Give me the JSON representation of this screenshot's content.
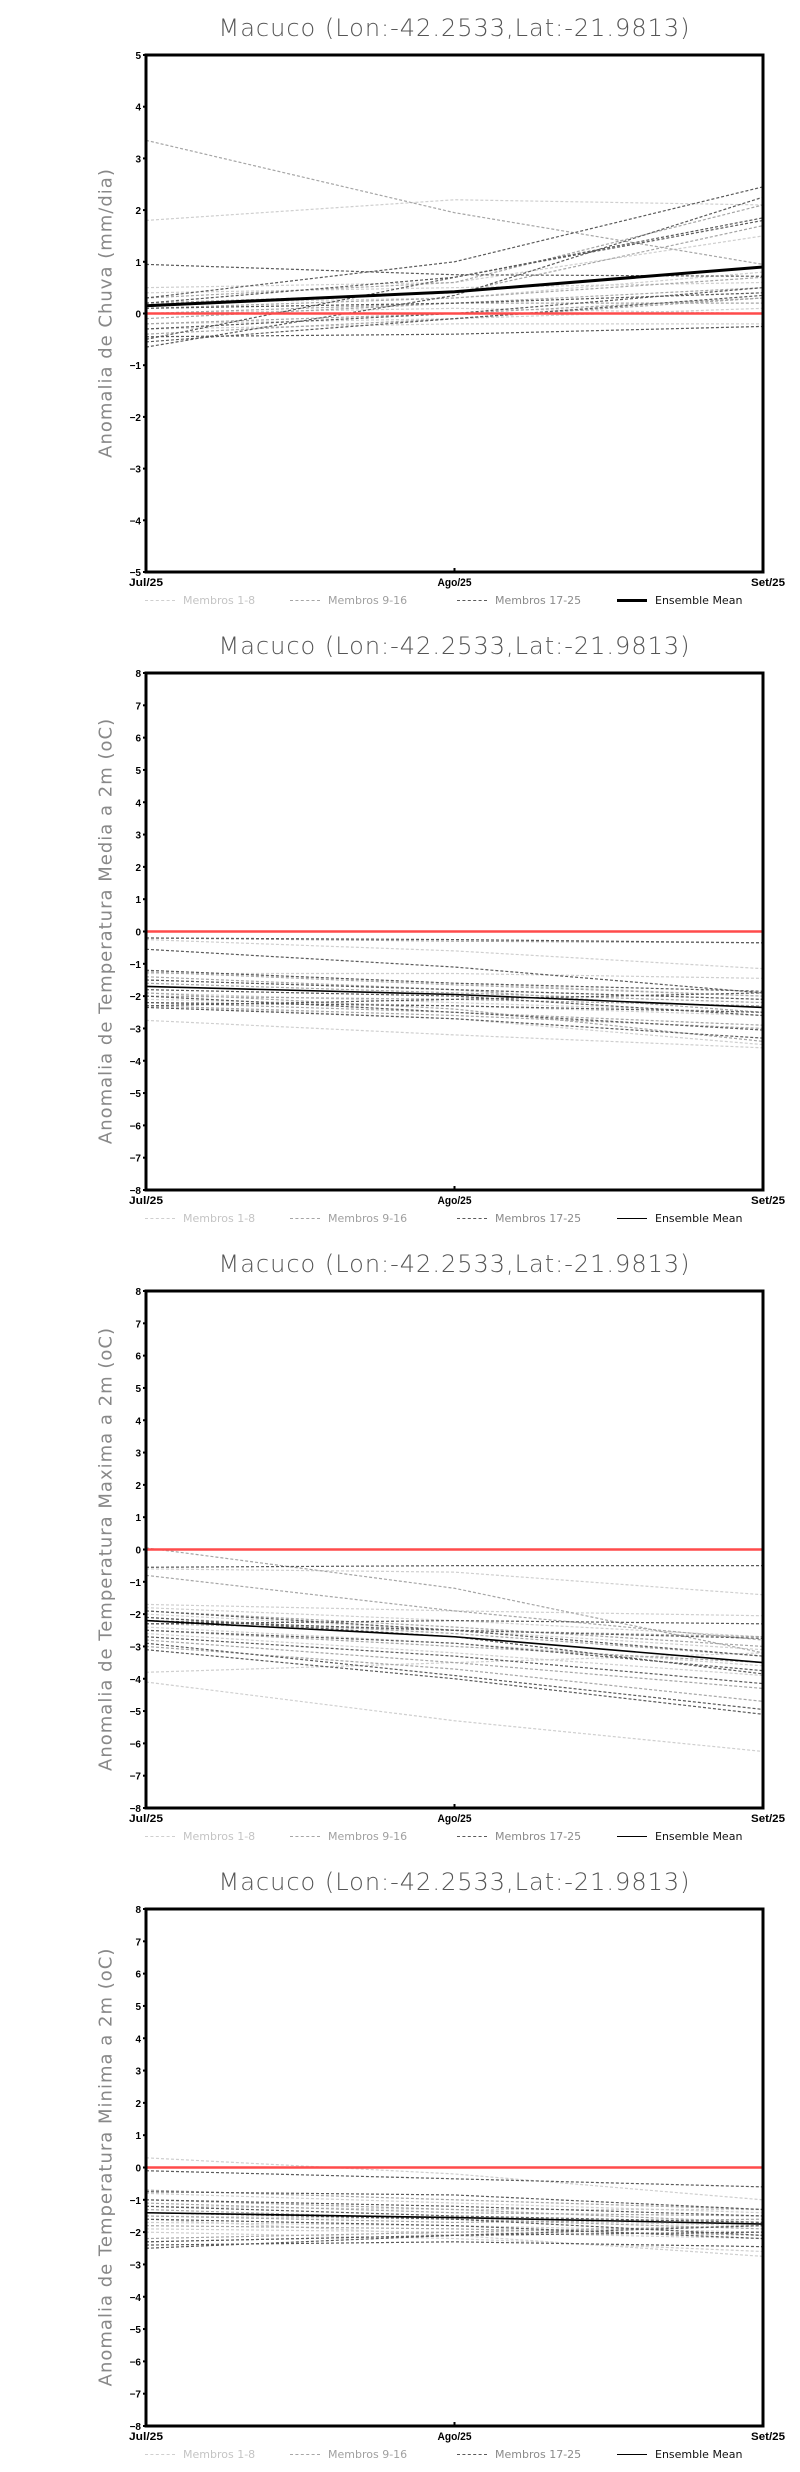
{
  "chart_data": [
    {
      "type": "line",
      "title": "Macuco (Lon:-42.2533,Lat:-21.9813)",
      "ylabel": "Anomalia de Chuva (mm/dia)",
      "xlabel": "",
      "categories": [
        "Jul/25",
        "Ago/25",
        "Set/25"
      ],
      "ylim": [
        -5,
        5
      ],
      "yticks": [
        -5,
        -4,
        -3,
        -2,
        -1,
        0,
        1,
        2,
        3,
        4,
        5
      ],
      "reference_line": 0,
      "legend": [
        "Membros 1-8",
        "Membros 9-16",
        "Membros 17-25",
        "Ensemble Mean"
      ],
      "legend_placement": "bottom",
      "ensemble_mean": [
        0.15,
        0.42,
        0.9
      ],
      "series_groups": [
        {
          "name": "Membros 1-8",
          "members": [
            [
              1.8,
              2.2,
              2.1
            ],
            [
              0.5,
              0.6,
              1.5
            ],
            [
              0.2,
              0.3,
              0.8
            ],
            [
              0.1,
              0.2,
              0.4
            ],
            [
              -0.2,
              -0.1,
              0.1
            ],
            [
              -0.3,
              -0.2,
              -0.2
            ],
            [
              0.4,
              0.5,
              0.6
            ],
            [
              0.0,
              0.1,
              0.0
            ]
          ]
        },
        {
          "name": "Membros 9-16",
          "members": [
            [
              3.35,
              1.95,
              0.95
            ],
            [
              0.3,
              0.6,
              2.1
            ],
            [
              -0.1,
              0.2,
              0.5
            ],
            [
              0.1,
              0.3,
              0.7
            ],
            [
              -0.4,
              -0.1,
              0.3
            ],
            [
              0.2,
              0.4,
              1.7
            ],
            [
              -0.2,
              0.0,
              0.3
            ],
            [
              0.0,
              0.2,
              0.2
            ]
          ]
        },
        {
          "name": "Membros 17-25",
          "members": [
            [
              0.95,
              0.75,
              0.72
            ],
            [
              0.3,
              1.0,
              2.45
            ],
            [
              -0.65,
              0.35,
              2.25
            ],
            [
              -0.5,
              0.7,
              1.85
            ],
            [
              0.2,
              0.7,
              1.8
            ],
            [
              -0.3,
              0.0,
              0.5
            ],
            [
              -0.45,
              -0.4,
              -0.25
            ],
            [
              -0.55,
              -0.1,
              0.35
            ],
            [
              0.1,
              0.2,
              0.4
            ]
          ]
        }
      ]
    },
    {
      "type": "line",
      "title": "Macuco (Lon:-42.2533,Lat:-21.9813)",
      "ylabel": "Anomalia de Temperatura Media a 2m (oC)",
      "xlabel": "",
      "categories": [
        "Jul/25",
        "Ago/25",
        "Set/25"
      ],
      "ylim": [
        -8,
        8
      ],
      "yticks": [
        -8,
        -7,
        -6,
        -5,
        -4,
        -3,
        -2,
        -1,
        0,
        1,
        2,
        3,
        4,
        5,
        6,
        7,
        8
      ],
      "reference_line": 0,
      "legend": [
        "Membros 1-8",
        "Membros 9-16",
        "Membros 17-25",
        "Ensemble Mean"
      ],
      "legend_placement": "bottom",
      "ensemble_mean": [
        -1.7,
        -1.95,
        -2.35
      ],
      "series_groups": [
        {
          "name": "Membros 1-8",
          "members": [
            [
              -0.25,
              -0.6,
              -1.15
            ],
            [
              -2.75,
              -3.2,
              -3.6
            ],
            [
              -1.3,
              -1.3,
              -1.45
            ],
            [
              -1.9,
              -2.2,
              -2.5
            ],
            [
              -2.3,
              -2.7,
              -3.5
            ],
            [
              -1.5,
              -1.8,
              -2.1
            ],
            [
              -2.1,
              -2.3,
              -2.6
            ],
            [
              -1.2,
              -1.6,
              -2.0
            ]
          ]
        },
        {
          "name": "Membros 9-16",
          "members": [
            [
              -0.2,
              -0.3,
              -0.35
            ],
            [
              -1.25,
              -1.65,
              -2.0
            ],
            [
              -2.3,
              -2.6,
              -3.0
            ],
            [
              -1.9,
              -2.4,
              -3.4
            ],
            [
              -1.6,
              -1.9,
              -2.2
            ],
            [
              -2.0,
              -2.1,
              -2.3
            ],
            [
              -1.4,
              -1.8,
              -2.5
            ],
            [
              -2.2,
              -2.5,
              -2.9
            ]
          ]
        },
        {
          "name": "Membros 17-25",
          "members": [
            [
              -0.2,
              -0.25,
              -0.35
            ],
            [
              -0.55,
              -1.1,
              -1.9
            ],
            [
              -1.2,
              -1.6,
              -1.85
            ],
            [
              -1.5,
              -1.8,
              -2.1
            ],
            [
              -2.0,
              -2.5,
              -3.05
            ],
            [
              -2.35,
              -2.7,
              -3.3
            ],
            [
              -2.2,
              -2.3,
              -2.5
            ],
            [
              -1.8,
              -2.0,
              -2.6
            ],
            [
              -2.3,
              -2.1,
              -1.9
            ]
          ]
        }
      ]
    },
    {
      "type": "line",
      "title": "Macuco (Lon:-42.2533,Lat:-21.9813)",
      "ylabel": "Anomalia de Temperatura Maxima a 2m (oC)",
      "xlabel": "",
      "categories": [
        "Jul/25",
        "Ago/25",
        "Set/25"
      ],
      "ylim": [
        -8,
        8
      ],
      "yticks": [
        -8,
        -7,
        -6,
        -5,
        -4,
        -3,
        -2,
        -1,
        0,
        1,
        2,
        3,
        4,
        5,
        6,
        7,
        8
      ],
      "reference_line": 0,
      "legend": [
        "Membros 1-8",
        "Membros 9-16",
        "Membros 17-25",
        "Ensemble Mean"
      ],
      "legend_placement": "bottom",
      "ensemble_mean": [
        -2.2,
        -2.7,
        -3.5
      ],
      "series_groups": [
        {
          "name": "Membros 1-8",
          "members": [
            [
              -4.1,
              -5.3,
              -6.25
            ],
            [
              -0.6,
              -0.7,
              -1.4
            ],
            [
              -1.7,
              -1.9,
              -2.05
            ],
            [
              -3.8,
              -3.5,
              -3.2
            ],
            [
              -2.0,
              -2.5,
              -3.1
            ],
            [
              -2.4,
              -2.9,
              -3.6
            ],
            [
              -1.8,
              -2.2,
              -2.7
            ],
            [
              -2.6,
              -3.2,
              -3.9
            ]
          ]
        },
        {
          "name": "Membros 9-16",
          "members": [
            [
              0.05,
              -1.2,
              -3.2
            ],
            [
              -0.8,
              -1.9,
              -2.8
            ],
            [
              -2.3,
              -2.5,
              -2.7
            ],
            [
              -2.8,
              -3.5,
              -4.3
            ],
            [
              -1.9,
              -2.4,
              -3.0
            ],
            [
              -3.0,
              -3.7,
              -4.7
            ],
            [
              -2.1,
              -2.6,
              -3.3
            ],
            [
              -2.5,
              -3.0,
              -3.5
            ]
          ]
        },
        {
          "name": "Membros 17-25",
          "members": [
            [
              -0.55,
              -0.5,
              -0.5
            ],
            [
              -2.9,
              -3.9,
              -4.95
            ],
            [
              -3.1,
              -4.0,
              -5.1
            ],
            [
              -2.3,
              -2.2,
              -2.3
            ],
            [
              -1.9,
              -2.5,
              -3.3
            ],
            [
              -2.7,
              -3.3,
              -4.15
            ],
            [
              -2.1,
              -2.7,
              -3.85
            ],
            [
              -2.5,
              -2.9,
              -3.75
            ],
            [
              -2.2,
              -2.5,
              -2.75
            ]
          ]
        }
      ]
    },
    {
      "type": "line",
      "title": "Macuco (Lon:-42.2533,Lat:-21.9813)",
      "ylabel": "Anomalia de Temperatura Minima a 2m (oC)",
      "xlabel": "",
      "categories": [
        "Jul/25",
        "Ago/25",
        "Set/25"
      ],
      "ylim": [
        -8,
        8
      ],
      "yticks": [
        -8,
        -7,
        -6,
        -5,
        -4,
        -3,
        -2,
        -1,
        0,
        1,
        2,
        3,
        4,
        5,
        6,
        7,
        8
      ],
      "reference_line": 0,
      "legend": [
        "Membros 1-8",
        "Membros 9-16",
        "Membros 17-25",
        "Ensemble Mean"
      ],
      "legend_placement": "bottom",
      "ensemble_mean": [
        -1.4,
        -1.55,
        -1.75
      ],
      "series_groups": [
        {
          "name": "Membros 1-8",
          "members": [
            [
              0.3,
              -0.2,
              -1.0
            ],
            [
              -1.6,
              -2.1,
              -2.75
            ],
            [
              -1.9,
              -2.0,
              -2.2
            ],
            [
              -1.2,
              -1.3,
              -1.3
            ],
            [
              -0.8,
              -1.1,
              -1.4
            ],
            [
              -1.7,
              -1.8,
              -2.0
            ],
            [
              -2.0,
              -2.2,
              -2.6
            ],
            [
              -1.5,
              -1.6,
              -1.8
            ]
          ]
        },
        {
          "name": "Membros 9-16",
          "members": [
            [
              -0.7,
              -1.0,
              -1.3
            ],
            [
              -1.0,
              -1.3,
              -1.7
            ],
            [
              -1.3,
              -1.6,
              -1.9
            ],
            [
              -2.3,
              -2.1,
              -2.0
            ],
            [
              -1.5,
              -1.7,
              -1.6
            ],
            [
              -1.1,
              -1.4,
              -1.5
            ],
            [
              -1.8,
              -1.9,
              -2.1
            ],
            [
              -2.2,
              -2.0,
              -1.8
            ]
          ]
        },
        {
          "name": "Membros 17-25",
          "members": [
            [
              -0.1,
              -0.35,
              -0.6
            ],
            [
              -0.75,
              -0.85,
              -1.3
            ],
            [
              -2.5,
              -2.1,
              -1.8
            ],
            [
              -2.4,
              -2.3,
              -2.45
            ],
            [
              -1.2,
              -1.5,
              -1.7
            ],
            [
              -1.4,
              -1.6,
              -2.1
            ],
            [
              -2.3,
              -2.1,
              -2.0
            ],
            [
              -1.0,
              -1.2,
              -1.5
            ],
            [
              -1.6,
              -1.8,
              -2.2
            ]
          ]
        }
      ]
    }
  ],
  "colors": {
    "group1": "#cfcfcf",
    "group2": "#a6a6a6",
    "group3": "#5a5a5a",
    "mean": "#000000",
    "zero_line": "#ff4b4b"
  }
}
